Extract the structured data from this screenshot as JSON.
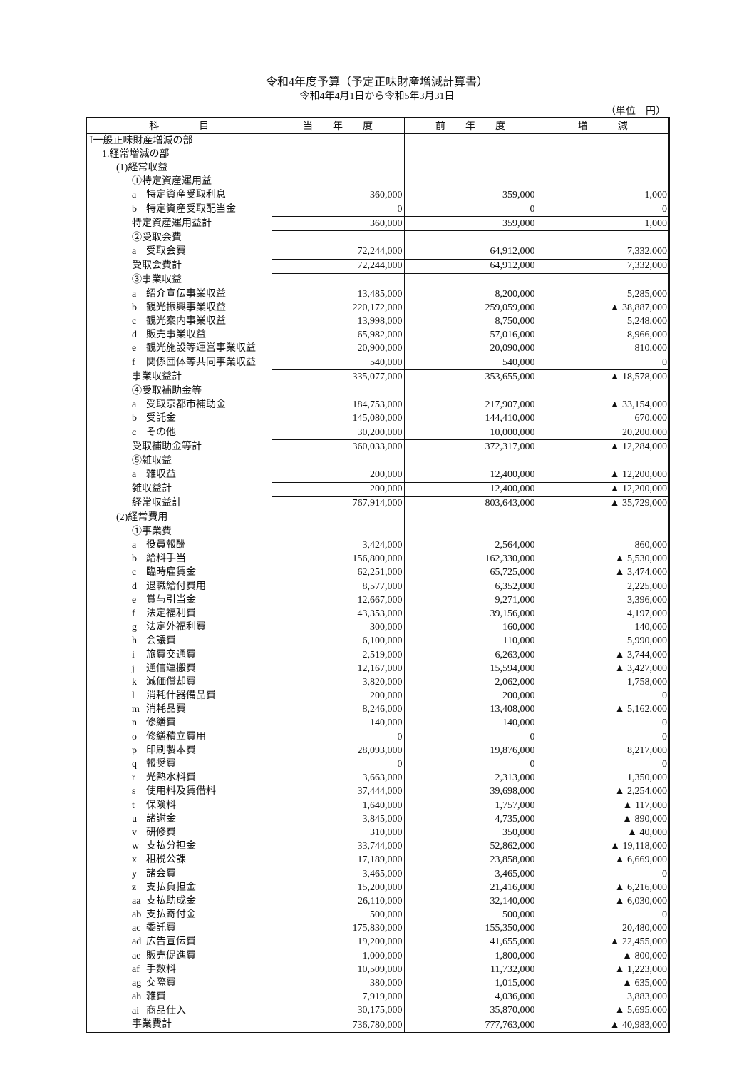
{
  "title": "令和4年度予算（予定正味財産増減計算書）",
  "subtitle": "令和4年4月1日から令和5年3月31日",
  "unit": "（単位　円）",
  "headers": [
    "科　　　　目",
    "当　　年　　度",
    "前　　年　　度",
    "増　　　減"
  ],
  "rows": [
    {
      "indent": 0,
      "code": "",
      "label": "Ⅰ一般正味財産増減の部",
      "current": "",
      "previous": "",
      "diff": "",
      "total": false
    },
    {
      "indent": 1,
      "code": "",
      "label": "1.経常増減の部",
      "current": "",
      "previous": "",
      "diff": "",
      "total": false
    },
    {
      "indent": 2,
      "code": "",
      "label": "(1)経常収益",
      "current": "",
      "previous": "",
      "diff": "",
      "total": false
    },
    {
      "indent": 3,
      "code": "",
      "label": "①特定資産運用益",
      "current": "",
      "previous": "",
      "diff": "",
      "total": false
    },
    {
      "indent": 3,
      "code": "a",
      "label": "特定資産受取利息",
      "current": "360,000",
      "previous": "359,000",
      "diff": "1,000",
      "total": false
    },
    {
      "indent": 3,
      "code": "b",
      "label": "特定資産受取配当金",
      "current": "0",
      "previous": "0",
      "diff": "0",
      "total": false
    },
    {
      "indent": 3,
      "code": "",
      "label": "特定資産運用益計",
      "current": "360,000",
      "previous": "359,000",
      "diff": "1,000",
      "total": true
    },
    {
      "indent": 3,
      "code": "",
      "label": "②受取会費",
      "current": "",
      "previous": "",
      "diff": "",
      "total": false
    },
    {
      "indent": 3,
      "code": "a",
      "label": "受取会費",
      "current": "72,244,000",
      "previous": "64,912,000",
      "diff": "7,332,000",
      "total": false
    },
    {
      "indent": 3,
      "code": "",
      "label": "受取会費計",
      "current": "72,244,000",
      "previous": "64,912,000",
      "diff": "7,332,000",
      "total": true
    },
    {
      "indent": 3,
      "code": "",
      "label": "③事業収益",
      "current": "",
      "previous": "",
      "diff": "",
      "total": false
    },
    {
      "indent": 3,
      "code": "a",
      "label": "紹介宣伝事業収益",
      "current": "13,485,000",
      "previous": "8,200,000",
      "diff": "5,285,000",
      "total": false
    },
    {
      "indent": 3,
      "code": "b",
      "label": "観光振興事業収益",
      "current": "220,172,000",
      "previous": "259,059,000",
      "diff": "▲ 38,887,000",
      "total": false
    },
    {
      "indent": 3,
      "code": "c",
      "label": "観光案内事業収益",
      "current": "13,998,000",
      "previous": "8,750,000",
      "diff": "5,248,000",
      "total": false
    },
    {
      "indent": 3,
      "code": "d",
      "label": "販売事業収益",
      "current": "65,982,000",
      "previous": "57,016,000",
      "diff": "8,966,000",
      "total": false
    },
    {
      "indent": 3,
      "code": "e",
      "label": "観光施設等運営事業収益",
      "current": "20,900,000",
      "previous": "20,090,000",
      "diff": "810,000",
      "total": false
    },
    {
      "indent": 3,
      "code": "f",
      "label": "関係団体等共同事業収益",
      "current": "540,000",
      "previous": "540,000",
      "diff": "0",
      "total": false
    },
    {
      "indent": 3,
      "code": "",
      "label": "事業収益計",
      "current": "335,077,000",
      "previous": "353,655,000",
      "diff": "▲ 18,578,000",
      "total": true
    },
    {
      "indent": 3,
      "code": "",
      "label": "④受取補助金等",
      "current": "",
      "previous": "",
      "diff": "",
      "total": false
    },
    {
      "indent": 3,
      "code": "a",
      "label": "受取京都市補助金",
      "current": "184,753,000",
      "previous": "217,907,000",
      "diff": "▲ 33,154,000",
      "total": false
    },
    {
      "indent": 3,
      "code": "b",
      "label": "受託金",
      "current": "145,080,000",
      "previous": "144,410,000",
      "diff": "670,000",
      "total": false
    },
    {
      "indent": 3,
      "code": "c",
      "label": "その他",
      "current": "30,200,000",
      "previous": "10,000,000",
      "diff": "20,200,000",
      "total": false
    },
    {
      "indent": 3,
      "code": "",
      "label": "受取補助金等計",
      "current": "360,033,000",
      "previous": "372,317,000",
      "diff": "▲ 12,284,000",
      "total": true
    },
    {
      "indent": 3,
      "code": "",
      "label": "⑤雑収益",
      "current": "",
      "previous": "",
      "diff": "",
      "total": false
    },
    {
      "indent": 3,
      "code": "a",
      "label": "雑収益",
      "current": "200,000",
      "previous": "12,400,000",
      "diff": "▲ 12,200,000",
      "total": false
    },
    {
      "indent": 3,
      "code": "",
      "label": "雑収益計",
      "current": "200,000",
      "previous": "12,400,000",
      "diff": "▲ 12,200,000",
      "total": true
    },
    {
      "indent": 3,
      "code": "",
      "label": "経常収益計",
      "current": "767,914,000",
      "previous": "803,643,000",
      "diff": "▲ 35,729,000",
      "total": true
    },
    {
      "indent": 2,
      "code": "",
      "label": "(2)経常費用",
      "current": "",
      "previous": "",
      "diff": "",
      "total": false
    },
    {
      "indent": 3,
      "code": "",
      "label": "①事業費",
      "current": "",
      "previous": "",
      "diff": "",
      "total": false
    },
    {
      "indent": 3,
      "code": "a",
      "label": "役員報酬",
      "current": "3,424,000",
      "previous": "2,564,000",
      "diff": "860,000",
      "total": false
    },
    {
      "indent": 3,
      "code": "b",
      "label": "給料手当",
      "current": "156,800,000",
      "previous": "162,330,000",
      "diff": "▲ 5,530,000",
      "total": false
    },
    {
      "indent": 3,
      "code": "c",
      "label": "臨時雇賃金",
      "current": "62,251,000",
      "previous": "65,725,000",
      "diff": "▲ 3,474,000",
      "total": false
    },
    {
      "indent": 3,
      "code": "d",
      "label": "退職給付費用",
      "current": "8,577,000",
      "previous": "6,352,000",
      "diff": "2,225,000",
      "total": false
    },
    {
      "indent": 3,
      "code": "e",
      "label": "賞与引当金",
      "current": "12,667,000",
      "previous": "9,271,000",
      "diff": "3,396,000",
      "total": false
    },
    {
      "indent": 3,
      "code": "f",
      "label": "法定福利費",
      "current": "43,353,000",
      "previous": "39,156,000",
      "diff": "4,197,000",
      "total": false
    },
    {
      "indent": 3,
      "code": "g",
      "label": "法定外福利費",
      "current": "300,000",
      "previous": "160,000",
      "diff": "140,000",
      "total": false
    },
    {
      "indent": 3,
      "code": "h",
      "label": "会議費",
      "current": "6,100,000",
      "previous": "110,000",
      "diff": "5,990,000",
      "total": false
    },
    {
      "indent": 3,
      "code": "i",
      "label": "旅費交通費",
      "current": "2,519,000",
      "previous": "6,263,000",
      "diff": "▲ 3,744,000",
      "total": false
    },
    {
      "indent": 3,
      "code": "j",
      "label": "通信運搬費",
      "current": "12,167,000",
      "previous": "15,594,000",
      "diff": "▲ 3,427,000",
      "total": false
    },
    {
      "indent": 3,
      "code": "k",
      "label": "減価償却費",
      "current": "3,820,000",
      "previous": "2,062,000",
      "diff": "1,758,000",
      "total": false
    },
    {
      "indent": 3,
      "code": "l",
      "label": "消耗什器備品費",
      "current": "200,000",
      "previous": "200,000",
      "diff": "0",
      "total": false
    },
    {
      "indent": 3,
      "code": "m",
      "label": "消耗品費",
      "current": "8,246,000",
      "previous": "13,408,000",
      "diff": "▲ 5,162,000",
      "total": false
    },
    {
      "indent": 3,
      "code": "n",
      "label": "修繕費",
      "current": "140,000",
      "previous": "140,000",
      "diff": "0",
      "total": false
    },
    {
      "indent": 3,
      "code": "o",
      "label": "修繕積立費用",
      "current": "0",
      "previous": "0",
      "diff": "0",
      "total": false
    },
    {
      "indent": 3,
      "code": "p",
      "label": "印刷製本費",
      "current": "28,093,000",
      "previous": "19,876,000",
      "diff": "8,217,000",
      "total": false
    },
    {
      "indent": 3,
      "code": "q",
      "label": "報奨費",
      "current": "0",
      "previous": "0",
      "diff": "0",
      "total": false
    },
    {
      "indent": 3,
      "code": "r",
      "label": "光熱水料費",
      "current": "3,663,000",
      "previous": "2,313,000",
      "diff": "1,350,000",
      "total": false
    },
    {
      "indent": 3,
      "code": "s",
      "label": "使用料及賃借料",
      "current": "37,444,000",
      "previous": "39,698,000",
      "diff": "▲ 2,254,000",
      "total": false
    },
    {
      "indent": 3,
      "code": "t",
      "label": "保険料",
      "current": "1,640,000",
      "previous": "1,757,000",
      "diff": "▲ 117,000",
      "total": false
    },
    {
      "indent": 3,
      "code": "u",
      "label": "諸謝金",
      "current": "3,845,000",
      "previous": "4,735,000",
      "diff": "▲ 890,000",
      "total": false
    },
    {
      "indent": 3,
      "code": "v",
      "label": "研修費",
      "current": "310,000",
      "previous": "350,000",
      "diff": "▲ 40,000",
      "total": false
    },
    {
      "indent": 3,
      "code": "w",
      "label": "支払分担金",
      "current": "33,744,000",
      "previous": "52,862,000",
      "diff": "▲ 19,118,000",
      "total": false
    },
    {
      "indent": 3,
      "code": "x",
      "label": "租税公課",
      "current": "17,189,000",
      "previous": "23,858,000",
      "diff": "▲ 6,669,000",
      "total": false
    },
    {
      "indent": 3,
      "code": "y",
      "label": "諸会費",
      "current": "3,465,000",
      "previous": "3,465,000",
      "diff": "0",
      "total": false
    },
    {
      "indent": 3,
      "code": "z",
      "label": "支払負担金",
      "current": "15,200,000",
      "previous": "21,416,000",
      "diff": "▲ 6,216,000",
      "total": false
    },
    {
      "indent": 3,
      "code": "aa",
      "label": "支払助成金",
      "current": "26,110,000",
      "previous": "32,140,000",
      "diff": "▲ 6,030,000",
      "total": false
    },
    {
      "indent": 3,
      "code": "ab",
      "label": "支払寄付金",
      "current": "500,000",
      "previous": "500,000",
      "diff": "0",
      "total": false
    },
    {
      "indent": 3,
      "code": "ac",
      "label": "委託費",
      "current": "175,830,000",
      "previous": "155,350,000",
      "diff": "20,480,000",
      "total": false
    },
    {
      "indent": 3,
      "code": "ad",
      "label": "広告宣伝費",
      "current": "19,200,000",
      "previous": "41,655,000",
      "diff": "▲ 22,455,000",
      "total": false
    },
    {
      "indent": 3,
      "code": "ae",
      "label": "販売促進費",
      "current": "1,000,000",
      "previous": "1,800,000",
      "diff": "▲ 800,000",
      "total": false
    },
    {
      "indent": 3,
      "code": "af",
      "label": "手数料",
      "current": "10,509,000",
      "previous": "11,732,000",
      "diff": "▲ 1,223,000",
      "total": false
    },
    {
      "indent": 3,
      "code": "ag",
      "label": "交際費",
      "current": "380,000",
      "previous": "1,015,000",
      "diff": "▲ 635,000",
      "total": false
    },
    {
      "indent": 3,
      "code": "ah",
      "label": "雑費",
      "current": "7,919,000",
      "previous": "4,036,000",
      "diff": "3,883,000",
      "total": false
    },
    {
      "indent": 3,
      "code": "ai",
      "label": "商品仕入",
      "current": "30,175,000",
      "previous": "35,870,000",
      "diff": "▲ 5,695,000",
      "total": false
    },
    {
      "indent": 3,
      "code": "",
      "label": "事業費計",
      "current": "736,780,000",
      "previous": "777,763,000",
      "diff": "▲ 40,983,000",
      "total": true
    }
  ]
}
